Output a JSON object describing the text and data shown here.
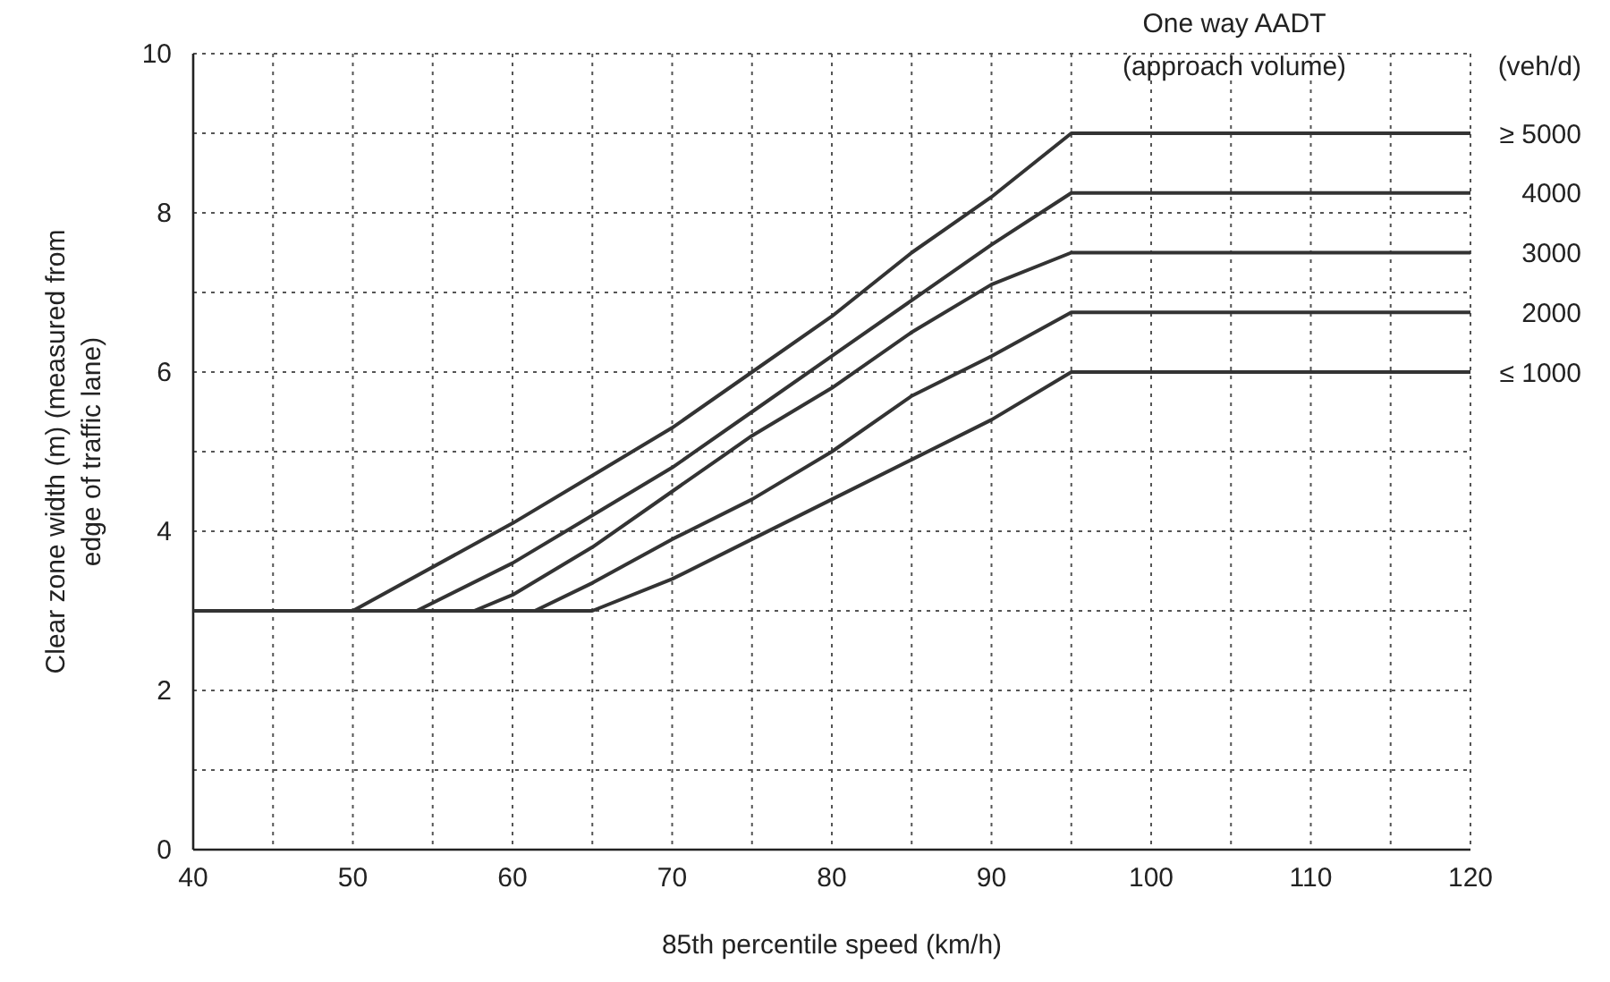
{
  "chart_data": {
    "type": "line",
    "xlabel": "85th percentile speed (km/h)",
    "ylabel": "Clear zone width (m) (measured from edge of traffic lane)",
    "legend_title": "One way AADT (approach volume)",
    "annotations": [
      "(veh/d)"
    ],
    "xlim": [
      40,
      120
    ],
    "ylim": [
      0,
      10
    ],
    "xticks": [
      40,
      {
        "value": 45,
        "label": null
      },
      50,
      {
        "value": 55,
        "label": null
      },
      60,
      {
        "value": 65,
        "label": null
      },
      70,
      {
        "value": 75,
        "label": null
      },
      80,
      {
        "value": 85,
        "label": null
      },
      90,
      {
        "value": 95,
        "label": null
      },
      100,
      {
        "value": 105,
        "label": null
      },
      110,
      {
        "value": 115,
        "label": null
      },
      120
    ],
    "yticks": [
      0,
      {
        "value": 1,
        "label": null
      },
      2,
      {
        "value": 3,
        "label": null
      },
      4,
      {
        "value": 5,
        "label": null
      },
      6,
      {
        "value": 7,
        "label": null
      },
      8,
      {
        "value": 9,
        "label": null
      },
      10
    ],
    "grid": true,
    "legend": "right",
    "marker": "none",
    "line_style": "solid",
    "series": [
      {
        "name": "≥ 5000",
        "color": "#333333",
        "x": [
          40,
          50,
          60,
          65,
          70,
          75,
          80,
          85,
          90,
          95,
          120
        ],
        "values": [
          3,
          3,
          4.1,
          4.7,
          5.3,
          6,
          6.7,
          7.5,
          8.2,
          9,
          9
        ]
      },
      {
        "name": "4000",
        "color": "#333333",
        "x": [
          40,
          54,
          60,
          65,
          70,
          75,
          80,
          85,
          90,
          95,
          120
        ],
        "values": [
          3,
          3,
          3.6,
          4.2,
          4.8,
          5.5,
          6.2,
          6.9,
          7.6,
          8.25,
          8.25
        ]
      },
      {
        "name": "3000",
        "color": "#333333",
        "x": [
          40,
          57.6,
          60,
          65,
          70,
          75,
          80,
          85,
          90,
          95,
          120
        ],
        "values": [
          3,
          3,
          3.2,
          3.8,
          4.5,
          5.2,
          5.8,
          6.5,
          7.1,
          7.5,
          7.5
        ]
      },
      {
        "name": "2000",
        "color": "#333333",
        "x": [
          40,
          61.4,
          65,
          70,
          75,
          80,
          85,
          90,
          95,
          120
        ],
        "values": [
          3,
          3,
          3.35,
          3.9,
          4.4,
          5,
          5.7,
          6.2,
          6.75,
          6.75
        ]
      },
      {
        "name": "≤ 1000",
        "color": "#333333",
        "x": [
          40,
          65,
          70,
          75,
          80,
          85,
          90,
          95,
          120
        ],
        "values": [
          3,
          3,
          3.4,
          3.9,
          4.4,
          4.9,
          5.4,
          6,
          6
        ]
      }
    ]
  }
}
